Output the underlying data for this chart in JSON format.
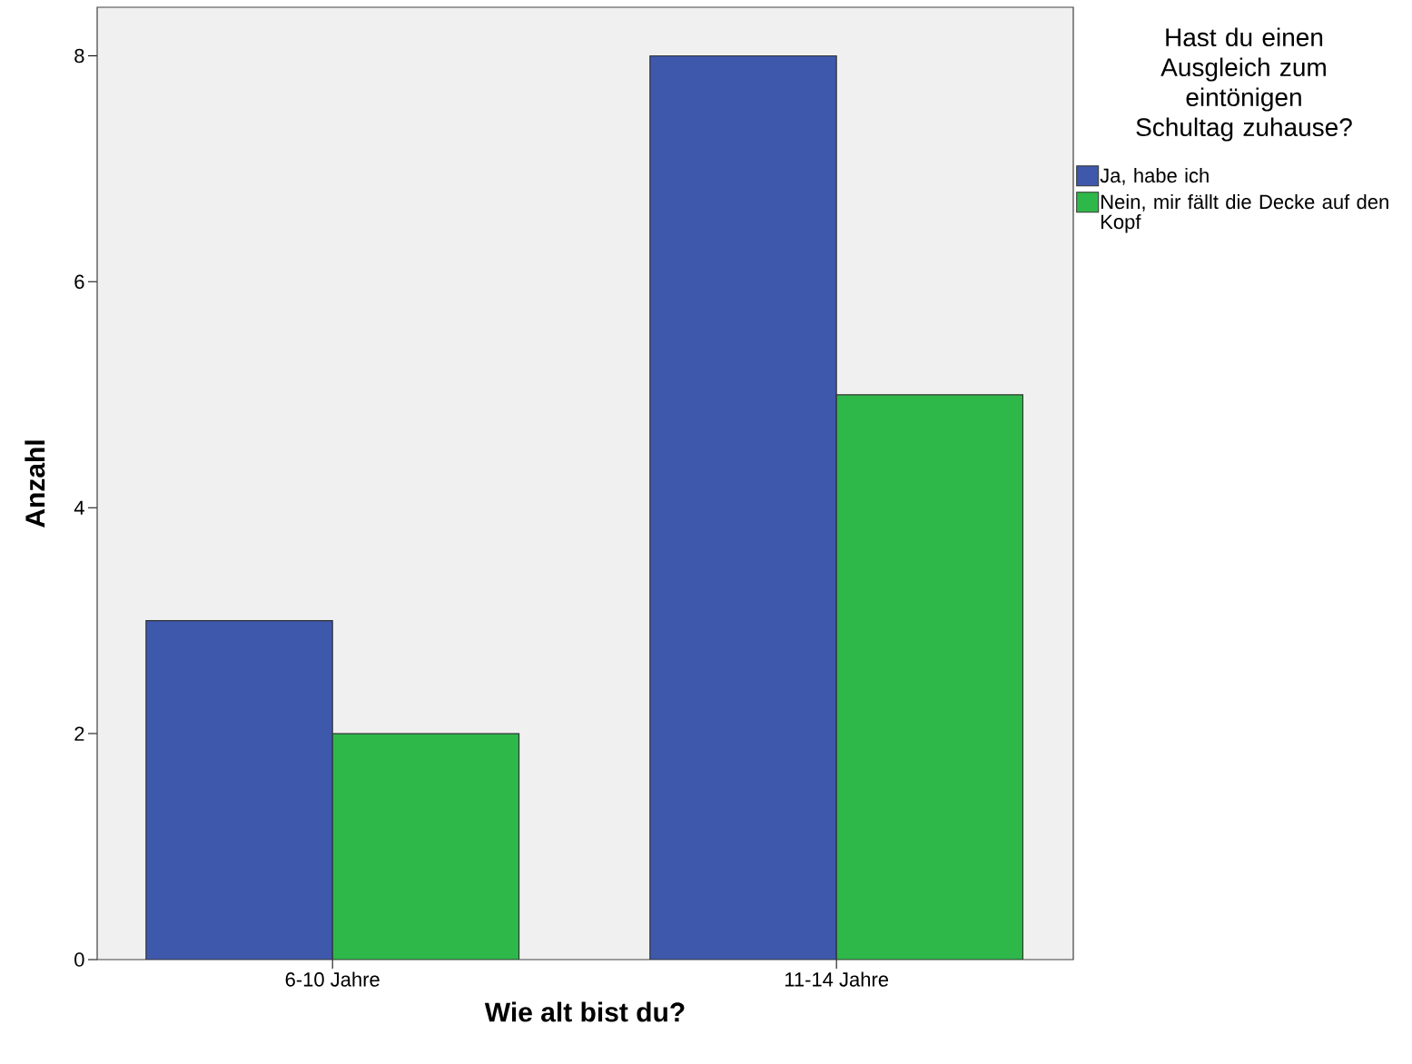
{
  "chart_data": {
    "type": "bar",
    "xlabel": "Wie alt bist du?",
    "ylabel": "Anzahl",
    "legend_title": "Hast du einen Ausgleich zum eintönigen Schultag zuhause?",
    "categories": [
      "6-10 Jahre",
      "11-14 Jahre"
    ],
    "series": [
      {
        "name": "Ja, habe ich",
        "color": "#3e58ac",
        "values": [
          3,
          8
        ]
      },
      {
        "name": "Nein, mir fällt die Decke auf den Kopf",
        "color": "#2eb84a",
        "values": [
          2,
          5
        ]
      }
    ],
    "ylim": [
      0,
      8.43
    ],
    "yticks": [
      0,
      2,
      4,
      6,
      8
    ],
    "grid": false,
    "legend": "top right"
  }
}
